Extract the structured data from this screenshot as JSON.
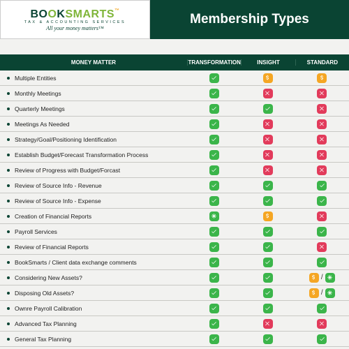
{
  "logo": {
    "part1": "BO",
    "part2": "O",
    "part3": "K",
    "part4": "SMARTS",
    "tm": "™",
    "sub": "TAX & ACCOUNTING SERVICES",
    "tag": "All your money matters™"
  },
  "title": "Membership Types",
  "columns": {
    "feature": "MONEY MATTER",
    "t1": "TRANSFORMATION",
    "t2": "INSIGHT",
    "t3": "STANDARD"
  },
  "legend": {
    "check": {
      "bg": "#3bb54a"
    },
    "x": {
      "bg": "#e23b5b"
    },
    "dollar": {
      "bg": "#f5a623"
    },
    "star": {
      "bg": "#3bb54a"
    }
  },
  "rows": [
    {
      "label": "Multiple Entities",
      "cells": [
        [
          "check"
        ],
        [
          "dollar"
        ],
        [
          "dollar"
        ]
      ]
    },
    {
      "label": "Monthly Meetings",
      "cells": [
        [
          "check"
        ],
        [
          "x"
        ],
        [
          "x"
        ]
      ]
    },
    {
      "label": "Quarterly Meetings",
      "cells": [
        [
          "check"
        ],
        [
          "check"
        ],
        [
          "x"
        ]
      ]
    },
    {
      "label": "Meetings As Needed",
      "cells": [
        [
          "check"
        ],
        [
          "x"
        ],
        [
          "x"
        ]
      ]
    },
    {
      "label": "Strategy/Goal/Positioning Identification",
      "cells": [
        [
          "check"
        ],
        [
          "x"
        ],
        [
          "x"
        ]
      ]
    },
    {
      "label": "Establish Budget/Forecast Transformation Process",
      "cells": [
        [
          "check"
        ],
        [
          "x"
        ],
        [
          "x"
        ]
      ]
    },
    {
      "label": "Review of Progress with Budget/Forcast",
      "cells": [
        [
          "check"
        ],
        [
          "x"
        ],
        [
          "x"
        ]
      ]
    },
    {
      "label": "Review of Source Info - Revenue",
      "cells": [
        [
          "check"
        ],
        [
          "check"
        ],
        [
          "check"
        ]
      ]
    },
    {
      "label": "Review of Source Info - Expense",
      "cells": [
        [
          "check"
        ],
        [
          "check"
        ],
        [
          "check"
        ]
      ]
    },
    {
      "label": "Creation of Financial Reports",
      "cells": [
        [
          "star"
        ],
        [
          "dollar"
        ],
        [
          "x"
        ]
      ]
    },
    {
      "label": "Payroll Services",
      "cells": [
        [
          "check"
        ],
        [
          "check"
        ],
        [
          "check"
        ]
      ]
    },
    {
      "label": "Review of Financial Reports",
      "cells": [
        [
          "check"
        ],
        [
          "check"
        ],
        [
          "x"
        ]
      ]
    },
    {
      "label": "BookSmarts / Client data exchange comments",
      "cells": [
        [
          "check"
        ],
        [
          "check"
        ],
        [
          "check"
        ]
      ]
    },
    {
      "label": "Considering New Assets?",
      "cells": [
        [
          "check"
        ],
        [
          "check"
        ],
        [
          "dollar",
          "star"
        ]
      ]
    },
    {
      "label": "Disposing Old Assets?",
      "cells": [
        [
          "check"
        ],
        [
          "check"
        ],
        [
          "dollar",
          "star"
        ]
      ]
    },
    {
      "label": "Ownre Payroll Calibration",
      "cells": [
        [
          "check"
        ],
        [
          "check"
        ],
        [
          "check"
        ]
      ]
    },
    {
      "label": "Advanced Tax Planning",
      "cells": [
        [
          "check"
        ],
        [
          "x"
        ],
        [
          "x"
        ]
      ]
    },
    {
      "label": "General Tax Planning",
      "cells": [
        [
          "check"
        ],
        [
          "check"
        ],
        [
          "check"
        ]
      ]
    }
  ]
}
